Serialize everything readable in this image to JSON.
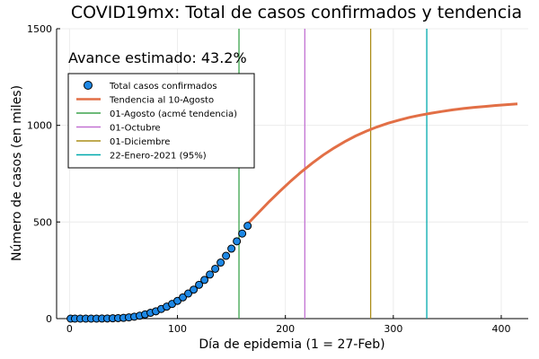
{
  "chart_data": {
    "type": "line",
    "title": "COVID19mx: Total de casos confirmados y tendencia",
    "xlabel": "Día de epidemia (1 = 27-Feb)",
    "ylabel": "Número de casos (en miles)",
    "xlim": [
      -12,
      425
    ],
    "ylim": [
      0,
      1500
    ],
    "xticks": [
      0,
      100,
      200,
      300,
      400
    ],
    "yticks": [
      0,
      500,
      1000,
      1500
    ],
    "grid": true,
    "legend_position": "top-left",
    "annotation": "Avance estimado: 43.2%",
    "colors": {
      "confirmed": "#1e88e5",
      "trend": "#e26f46",
      "v1": "#3da44d",
      "v2": "#c271d2",
      "v3": "#ac8d18",
      "v4": "#00a9ad"
    },
    "series": [
      {
        "name": "Total casos confirmados",
        "kind": "scatter",
        "x": [
          1,
          5,
          10,
          15,
          20,
          25,
          30,
          35,
          40,
          45,
          50,
          55,
          60,
          65,
          70,
          75,
          80,
          85,
          90,
          95,
          100,
          105,
          110,
          115,
          120,
          125,
          130,
          135,
          140,
          145,
          150,
          155,
          160,
          165
        ],
        "y": [
          0,
          0,
          0,
          0,
          0,
          0.1,
          0.3,
          0.8,
          1.5,
          2.5,
          4,
          6.5,
          10,
          15,
          22,
          30,
          38,
          50,
          62,
          76,
          92,
          110,
          130,
          150,
          175,
          200,
          228,
          258,
          290,
          325,
          362,
          400,
          440,
          480
        ]
      },
      {
        "name": "Tendencia al 10-Agosto",
        "kind": "line",
        "x": [
          165,
          175,
          185,
          195,
          205,
          215,
          225,
          235,
          245,
          255,
          265,
          275,
          285,
          295,
          305,
          315,
          325,
          335,
          345,
          355,
          365,
          375,
          385,
          395,
          405,
          415
        ],
        "y": [
          490,
          548,
          606,
          660,
          712,
          760,
          805,
          846,
          883,
          916,
          945,
          970,
          992,
          1011,
          1027,
          1041,
          1053,
          1063,
          1072,
          1080,
          1087,
          1093,
          1098,
          1103,
          1107,
          1111
        ]
      },
      {
        "name": "01-Agosto (acmé tendencia)",
        "kind": "vline",
        "x": 157
      },
      {
        "name": "01-Octubre",
        "kind": "vline",
        "x": 218
      },
      {
        "name": "01-Diciembre",
        "kind": "vline",
        "x": 279
      },
      {
        "name": "22-Enero-2021 (95%)",
        "kind": "vline",
        "x": 331
      }
    ]
  }
}
